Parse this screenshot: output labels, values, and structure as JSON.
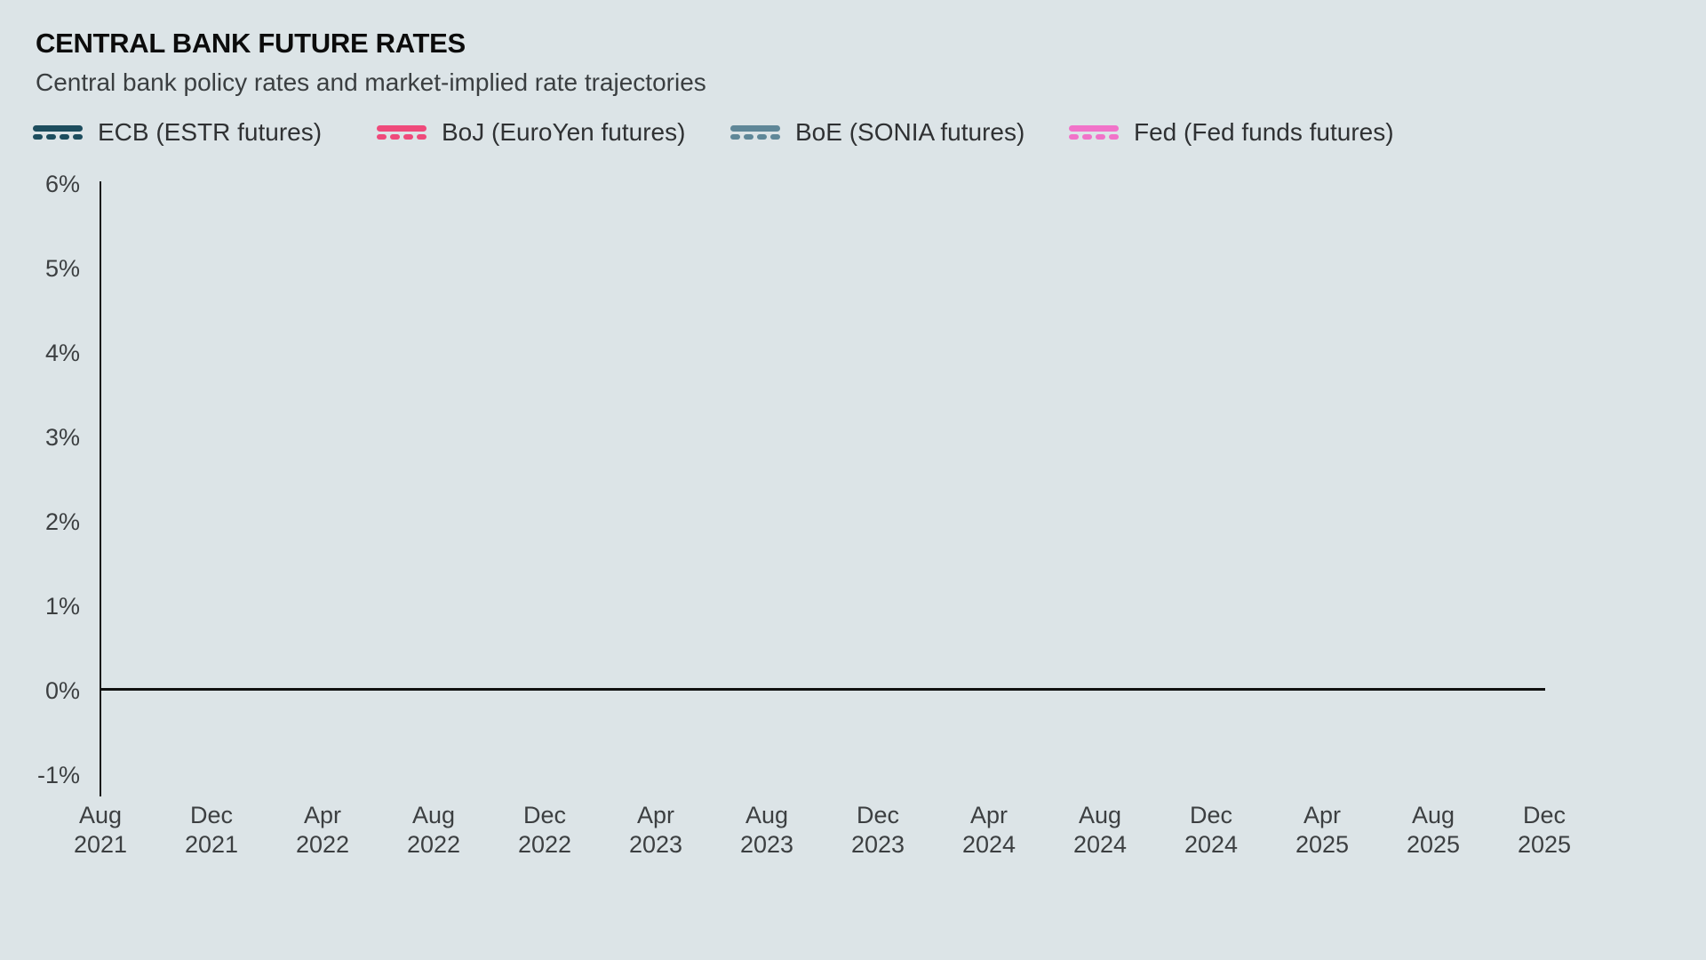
{
  "header": {
    "title": "CENTRAL BANK FUTURE RATES",
    "subtitle": "Central bank policy rates and market-implied rate trajectories"
  },
  "legend": {
    "items": [
      {
        "label": "ECB (ESTR futures)",
        "color": "#1d4d5e"
      },
      {
        "label": "BoJ (EuroYen futures)",
        "color": "#ef4a7b"
      },
      {
        "label": "BoE (SONIA futures)",
        "color": "#5f8798"
      },
      {
        "label": "Fed (Fed funds futures)",
        "color": "#f173c9"
      }
    ]
  },
  "axes": {
    "y_tick_labels": [
      "6%",
      "5%",
      "4%",
      "3%",
      "2%",
      "1%",
      "0%",
      "-1%"
    ],
    "x_tick_labels": [
      {
        "month": "Aug",
        "year": "2021"
      },
      {
        "month": "Dec",
        "year": "2021"
      },
      {
        "month": "Apr",
        "year": "2022"
      },
      {
        "month": "Aug",
        "year": "2022"
      },
      {
        "month": "Dec",
        "year": "2022"
      },
      {
        "month": "Apr",
        "year": "2023"
      },
      {
        "month": "Aug",
        "year": "2023"
      },
      {
        "month": "Dec",
        "year": "2023"
      },
      {
        "month": "Apr",
        "year": "2024"
      },
      {
        "month": "Aug",
        "year": "2024"
      },
      {
        "month": "Dec",
        "year": "2024"
      },
      {
        "month": "Apr",
        "year": "2025"
      },
      {
        "month": "Aug",
        "year": "2025"
      },
      {
        "month": "Dec",
        "year": "2025"
      }
    ]
  },
  "colors": {
    "background": "#dce4e7",
    "axis_line": "#1a1a1a",
    "zero_line": "#111111",
    "title_text": "#0c0c0c",
    "subtitle_text": "#3a3e40",
    "tick_text": "#3c3f41",
    "legend_text": "#2f3133"
  },
  "chart_data": {
    "type": "line",
    "title": "CENTRAL BANK FUTURE RATES",
    "subtitle": "Central bank policy rates and market-implied rate trajectories",
    "x_categories": [
      "Aug 2021",
      "Dec 2021",
      "Apr 2022",
      "Aug 2022",
      "Dec 2022",
      "Apr 2023",
      "Aug 2023",
      "Dec 2023",
      "Apr 2024",
      "Aug 2024",
      "Dec 2024",
      "Apr 2025",
      "Aug 2025",
      "Dec 2025"
    ],
    "xlabel": "",
    "ylabel": "",
    "ylim": [
      -1,
      6
    ],
    "y_tick_labels": [
      "6%",
      "5%",
      "4%",
      "3%",
      "2%",
      "1%",
      "0%",
      "-1%"
    ],
    "grid": false,
    "legend_position": "top",
    "baseline_at_zero": true,
    "plot_area_empty": true,
    "series": [
      {
        "name": "ECB (ESTR futures)",
        "color": "#1d4d5e",
        "line_style": "solid-and-dashed",
        "values": []
      },
      {
        "name": "BoJ (EuroYen futures)",
        "color": "#ef4a7b",
        "line_style": "solid-and-dashed",
        "values": []
      },
      {
        "name": "BoE (SONIA futures)",
        "color": "#5f8798",
        "line_style": "solid-and-dashed",
        "values": []
      },
      {
        "name": "Fed (Fed funds futures)",
        "color": "#f173c9",
        "line_style": "solid-and-dashed",
        "values": []
      }
    ]
  }
}
